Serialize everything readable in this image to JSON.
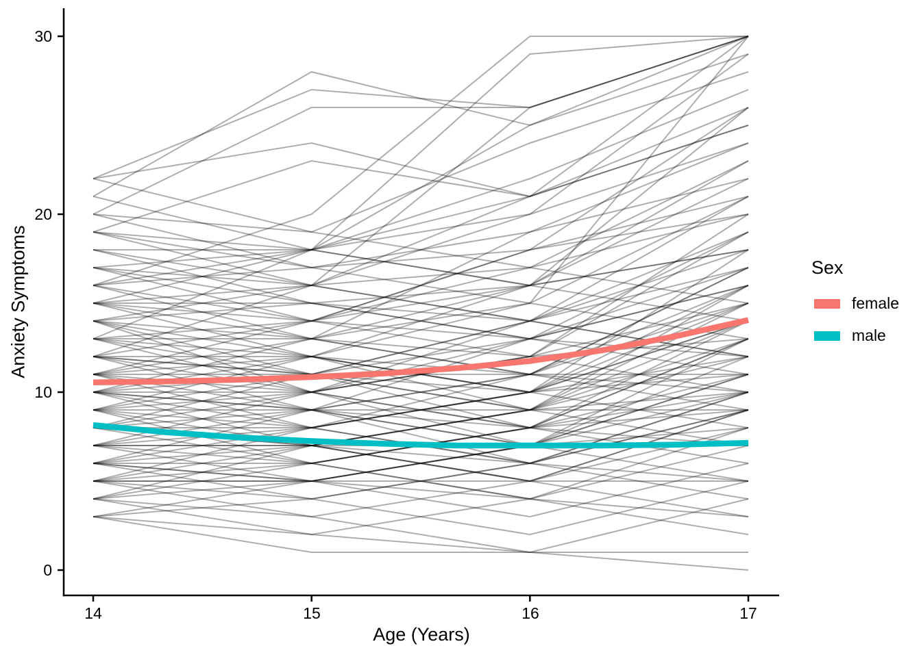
{
  "figure": {
    "x_axis_title": "Age (Years)",
    "y_axis_title": "Anxiety Symptoms"
  },
  "legend": {
    "title": "Sex",
    "items": [
      {
        "label": "female",
        "color": "#F8766D"
      },
      {
        "label": "male",
        "color": "#00BFC4"
      }
    ]
  },
  "chart_data": {
    "type": "line",
    "subtype": "spaghetti-plot-with-group-smooth-trends",
    "xlabel": "Age (Years)",
    "ylabel": "Anxiety Symptoms",
    "x_ticks": [
      14,
      15,
      16,
      17
    ],
    "x_tick_labels": [
      "14",
      "15",
      "16",
      "17"
    ],
    "y_ticks": [
      0,
      10,
      20,
      30
    ],
    "y_tick_labels": [
      "0",
      "10",
      "20",
      "30"
    ],
    "xlim": [
      13.865,
      17.14
    ],
    "ylim": [
      -1.5,
      31.5
    ],
    "grid": false,
    "legend_position": "right",
    "individual_lines_style": {
      "color": "#000000",
      "opacity": 0.32,
      "width": 2
    },
    "smooth_line_width": 8.5,
    "smooth_series": [
      {
        "name": "female",
        "color": "#F8766D",
        "x": [
          14,
          14.33,
          14.67,
          15,
          15.33,
          15.67,
          16,
          16.33,
          16.67,
          17
        ],
        "y": [
          10.55,
          10.6,
          10.7,
          10.85,
          11.05,
          11.35,
          11.75,
          12.35,
          13.15,
          14.05
        ]
      },
      {
        "name": "male",
        "color": "#00BFC4",
        "x": [
          14,
          14.33,
          14.67,
          15,
          15.33,
          15.67,
          16,
          16.33,
          16.67,
          17
        ],
        "y": [
          8.15,
          7.75,
          7.45,
          7.25,
          7.1,
          7.0,
          7.0,
          7.0,
          7.05,
          7.15
        ]
      }
    ],
    "trajectory_ages": [
      14,
      15,
      16,
      17
    ],
    "trajectories": [
      [
        22,
        27,
        26,
        30
      ],
      [
        22,
        24,
        21,
        26
      ],
      [
        22,
        19,
        17,
        15
      ],
      [
        21,
        28,
        25,
        29
      ],
      [
        20,
        26,
        26,
        30
      ],
      [
        20,
        19,
        24,
        28
      ],
      [
        19,
        18,
        29,
        30
      ],
      [
        19,
        23,
        21,
        25
      ],
      [
        18,
        18,
        21,
        30
      ],
      [
        18,
        16,
        26,
        30
      ],
      [
        17,
        18,
        20,
        24
      ],
      [
        17,
        16,
        14,
        19
      ],
      [
        16,
        20,
        30,
        30
      ],
      [
        16,
        18,
        25,
        30
      ],
      [
        16,
        17,
        19,
        22
      ],
      [
        16,
        14,
        18,
        21
      ],
      [
        16,
        13,
        11,
        9
      ],
      [
        15,
        18,
        22,
        27
      ],
      [
        15,
        16,
        17,
        23
      ],
      [
        15,
        13,
        16,
        18
      ],
      [
        15,
        15,
        14,
        17
      ],
      [
        15,
        12,
        10,
        8
      ],
      [
        15,
        14,
        13,
        12
      ],
      [
        14,
        16,
        21,
        25
      ],
      [
        14,
        12,
        15,
        30
      ],
      [
        14,
        15,
        13,
        16
      ],
      [
        14,
        10,
        12,
        15
      ],
      [
        14,
        11,
        9,
        7
      ],
      [
        14,
        13,
        12,
        13
      ],
      [
        13,
        18,
        16,
        26
      ],
      [
        13,
        14,
        17,
        20
      ],
      [
        13,
        11,
        14,
        12
      ],
      [
        13,
        13,
        19,
        24
      ],
      [
        13,
        10,
        8,
        6
      ],
      [
        13,
        12,
        11,
        10
      ],
      [
        12,
        16,
        20,
        29
      ],
      [
        12,
        12,
        10,
        14
      ],
      [
        12,
        9,
        13,
        17
      ],
      [
        12,
        14,
        16,
        23
      ],
      [
        12,
        11,
        8,
        10
      ],
      [
        12,
        10,
        7,
        5
      ],
      [
        12,
        11,
        10,
        11
      ],
      [
        11,
        13,
        15,
        21
      ],
      [
        11,
        10,
        14,
        18
      ],
      [
        11,
        12,
        9,
        13
      ],
      [
        11,
        8,
        11,
        16
      ],
      [
        11,
        14,
        18,
        26
      ],
      [
        11,
        9,
        6,
        4
      ],
      [
        11,
        11,
        11,
        11
      ],
      [
        10,
        12,
        16,
        22
      ],
      [
        10,
        9,
        7,
        12
      ],
      [
        10,
        11,
        13,
        19
      ],
      [
        10,
        8,
        10,
        15
      ],
      [
        10,
        13,
        11,
        17
      ],
      [
        10,
        10,
        12,
        20
      ],
      [
        10,
        7,
        5,
        3
      ],
      [
        10,
        9,
        8,
        7
      ],
      [
        9,
        11,
        14,
        21
      ],
      [
        9,
        8,
        6,
        9
      ],
      [
        9,
        10,
        13,
        16
      ],
      [
        9,
        7,
        9,
        14
      ],
      [
        9,
        12,
        10,
        18
      ],
      [
        9,
        6,
        4,
        2
      ],
      [
        9,
        9,
        9,
        9
      ],
      [
        8,
        10,
        12,
        19
      ],
      [
        8,
        7,
        5,
        8
      ],
      [
        8,
        9,
        11,
        15
      ],
      [
        8,
        6,
        8,
        13
      ],
      [
        8,
        11,
        9,
        16
      ],
      [
        8,
        8,
        10,
        12
      ],
      [
        8,
        7,
        6,
        5
      ],
      [
        7,
        9,
        11,
        17
      ],
      [
        7,
        6,
        4,
        7
      ],
      [
        7,
        8,
        10,
        14
      ],
      [
        7,
        5,
        7,
        11
      ],
      [
        7,
        10,
        8,
        13
      ],
      [
        7,
        7,
        9,
        10
      ],
      [
        7,
        7,
        7,
        7
      ],
      [
        6,
        8,
        10,
        16
      ],
      [
        6,
        5,
        3,
        6
      ],
      [
        6,
        7,
        9,
        12
      ],
      [
        6,
        4,
        6,
        10
      ],
      [
        6,
        9,
        7,
        11
      ],
      [
        6,
        6,
        8,
        9
      ],
      [
        6,
        5,
        4,
        3
      ],
      [
        5,
        7,
        9,
        15
      ],
      [
        5,
        4,
        2,
        5
      ],
      [
        5,
        6,
        8,
        11
      ],
      [
        5,
        3,
        5,
        9
      ],
      [
        5,
        8,
        6,
        10
      ],
      [
        5,
        5,
        7,
        8
      ],
      [
        5,
        5,
        5,
        5
      ],
      [
        4,
        6,
        8,
        14
      ],
      [
        4,
        3,
        1,
        4
      ],
      [
        4,
        5,
        7,
        10
      ],
      [
        4,
        2,
        4,
        8
      ],
      [
        4,
        7,
        5,
        9
      ],
      [
        3,
        1,
        1,
        1
      ],
      [
        3,
        2,
        1,
        0
      ],
      [
        3,
        5,
        7,
        13
      ],
      [
        3,
        4,
        6,
        9
      ],
      [
        17,
        14,
        12,
        10
      ],
      [
        18,
        15,
        13,
        11
      ],
      [
        19,
        16,
        14,
        12
      ],
      [
        20,
        17,
        15,
        13
      ],
      [
        21,
        18,
        16,
        14
      ],
      [
        17,
        15,
        16,
        18
      ],
      [
        19,
        17,
        18,
        20
      ]
    ]
  }
}
